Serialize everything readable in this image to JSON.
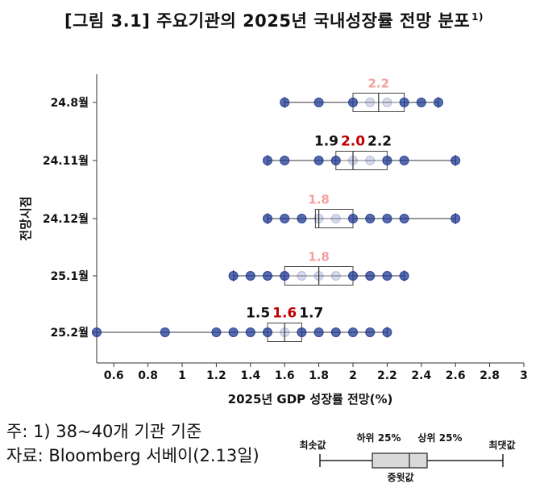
{
  "title": "[그림 3.1] 주요기관의 2025년 국내성장률 전망 분포",
  "title_sup": "1)",
  "chart_data": {
    "type": "box",
    "title": "[그림 3.1] 주요기관의 2025년 국내성장률 전망 분포",
    "xlabel": "2025년 GDP 성장률 전망(%)",
    "ylabel": "전망시점",
    "xlim": [
      0.5,
      3.0
    ],
    "xticks": [
      "0.6",
      "0.8",
      "1",
      "1.2",
      "1.4",
      "1.6",
      "1.8",
      "2",
      "2.2",
      "2.4",
      "2.6",
      "2.8",
      "3"
    ],
    "grid": false,
    "categories": [
      "24.8월",
      "24.11월",
      "24.12월",
      "25.1월",
      "25.2월"
    ],
    "series": [
      {
        "label": "24.8월",
        "min": 1.6,
        "q1": 2.0,
        "median": 2.15,
        "q3": 2.3,
        "max": 2.5,
        "median_label": "2.2",
        "q1_label": "",
        "q3_label": "",
        "points": [
          1.6,
          1.8,
          2.0,
          2.1,
          2.2,
          2.3,
          2.4,
          2.5
        ]
      },
      {
        "label": "24.11월",
        "min": 1.5,
        "q1": 1.9,
        "median": 2.0,
        "q3": 2.2,
        "max": 2.6,
        "median_label": "2.0",
        "q1_label": "1.9",
        "q3_label": "2.2",
        "points": [
          1.5,
          1.6,
          1.8,
          1.9,
          2.0,
          2.1,
          2.2,
          2.3,
          2.6
        ]
      },
      {
        "label": "24.12월",
        "min": 1.5,
        "q1": 1.78,
        "median": 1.8,
        "q3": 2.0,
        "max": 2.6,
        "median_label": "1.8",
        "q1_label": "",
        "q3_label": "",
        "points": [
          1.5,
          1.6,
          1.7,
          1.8,
          1.9,
          2.0,
          2.1,
          2.2,
          2.3,
          2.6
        ]
      },
      {
        "label": "25.1월",
        "min": 1.3,
        "q1": 1.6,
        "median": 1.8,
        "q3": 2.0,
        "max": 2.3,
        "median_label": "1.8",
        "q1_label": "",
        "q3_label": "",
        "points": [
          1.3,
          1.4,
          1.5,
          1.6,
          1.7,
          1.8,
          1.9,
          2.0,
          2.1,
          2.2,
          2.3
        ]
      },
      {
        "label": "25.2월",
        "min": 0.5,
        "q1": 1.5,
        "median": 1.6,
        "q3": 1.7,
        "max": 2.2,
        "median_label": "1.6",
        "q1_label": "1.5",
        "q3_label": "1.7",
        "points": [
          0.5,
          0.9,
          1.2,
          1.3,
          1.4,
          1.5,
          1.6,
          1.7,
          1.8,
          1.9,
          2.0,
          2.1,
          2.2
        ]
      }
    ],
    "colors": {
      "median_highlight": "#c00000",
      "median_faded": "#f4a0a0",
      "point": "#1f3a93",
      "box_edge": "#444444"
    }
  },
  "notes": {
    "line1": "주: 1)  38~40개  기관  기준",
    "line2": "자료: Bloomberg 서베이(2.13일)"
  },
  "legend": {
    "min_label": "최솟값",
    "q1_label": "하위 25%",
    "q3_label": "상위 25%",
    "max_label": "최댓값",
    "median_label": "중윗값"
  }
}
